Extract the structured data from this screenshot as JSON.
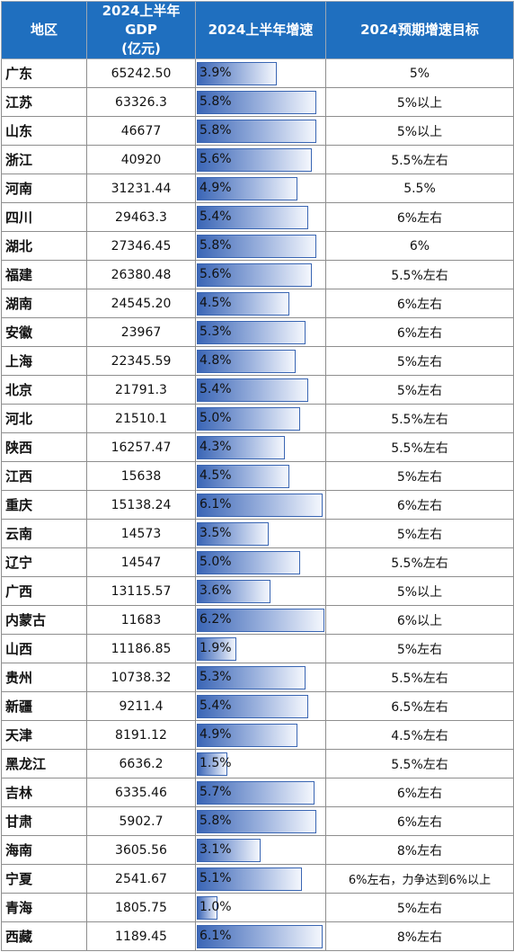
{
  "colors": {
    "header_bg": "#1f6fbf",
    "bar_start": "#3b66b6",
    "bar_end": "#f4f7fd"
  },
  "header": {
    "region": "地区",
    "gdp_line1": "2024上半年GDP",
    "gdp_line2": "(亿元)",
    "growth": "2024上半年增速",
    "target": "2024预期增速目标"
  },
  "rows": [
    {
      "region": "广东",
      "gdp": "65242.50",
      "growth": 3.9,
      "growth_label": "3.9%",
      "target": "5%"
    },
    {
      "region": "江苏",
      "gdp": "63326.3",
      "growth": 5.8,
      "growth_label": "5.8%",
      "target": "5%以上"
    },
    {
      "region": "山东",
      "gdp": "46677",
      "growth": 5.8,
      "growth_label": "5.8%",
      "target": "5%以上"
    },
    {
      "region": "浙江",
      "gdp": "40920",
      "growth": 5.6,
      "growth_label": "5.6%",
      "target": "5.5%左右"
    },
    {
      "region": "河南",
      "gdp": "31231.44",
      "growth": 4.9,
      "growth_label": "4.9%",
      "target": "5.5%"
    },
    {
      "region": "四川",
      "gdp": "29463.3",
      "growth": 5.4,
      "growth_label": "5.4%",
      "target": "6%左右"
    },
    {
      "region": "湖北",
      "gdp": "27346.45",
      "growth": 5.8,
      "growth_label": "5.8%",
      "target": "6%"
    },
    {
      "region": "福建",
      "gdp": "26380.48",
      "growth": 5.6,
      "growth_label": "5.6%",
      "target": "5.5%左右"
    },
    {
      "region": "湖南",
      "gdp": "24545.20",
      "growth": 4.5,
      "growth_label": "4.5%",
      "target": "6%左右"
    },
    {
      "region": "安徽",
      "gdp": "23967",
      "growth": 5.3,
      "growth_label": "5.3%",
      "target": "6%左右"
    },
    {
      "region": "上海",
      "gdp": "22345.59",
      "growth": 4.8,
      "growth_label": "4.8%",
      "target": "5%左右"
    },
    {
      "region": "北京",
      "gdp": "21791.3",
      "growth": 5.4,
      "growth_label": "5.4%",
      "target": "5%左右"
    },
    {
      "region": "河北",
      "gdp": "21510.1",
      "growth": 5.0,
      "growth_label": "5.0%",
      "target": "5.5%左右"
    },
    {
      "region": "陕西",
      "gdp": "16257.47",
      "growth": 4.3,
      "growth_label": "4.3%",
      "target": "5.5%左右"
    },
    {
      "region": "江西",
      "gdp": "15638",
      "growth": 4.5,
      "growth_label": "4.5%",
      "target": "5%左右"
    },
    {
      "region": "重庆",
      "gdp": "15138.24",
      "growth": 6.1,
      "growth_label": "6.1%",
      "target": "6%左右"
    },
    {
      "region": "云南",
      "gdp": "14573",
      "growth": 3.5,
      "growth_label": "3.5%",
      "target": "5%左右"
    },
    {
      "region": "辽宁",
      "gdp": "14547",
      "growth": 5.0,
      "growth_label": "5.0%",
      "target": "5.5%左右"
    },
    {
      "region": "广西",
      "gdp": "13115.57",
      "growth": 3.6,
      "growth_label": "3.6%",
      "target": "5%以上"
    },
    {
      "region": "内蒙古",
      "gdp": "11683",
      "growth": 6.2,
      "growth_label": "6.2%",
      "target": "6%以上"
    },
    {
      "region": "山西",
      "gdp": "11186.85",
      "growth": 1.9,
      "growth_label": "1.9%",
      "target": "5%左右"
    },
    {
      "region": "贵州",
      "gdp": "10738.32",
      "growth": 5.3,
      "growth_label": "5.3%",
      "target": "5.5%左右"
    },
    {
      "region": "新疆",
      "gdp": "9211.4",
      "growth": 5.4,
      "growth_label": "5.4%",
      "target": "6.5%左右"
    },
    {
      "region": "天津",
      "gdp": "8191.12",
      "growth": 4.9,
      "growth_label": "4.9%",
      "target": "4.5%左右"
    },
    {
      "region": "黑龙江",
      "gdp": "6636.2",
      "growth": 1.5,
      "growth_label": "1.5%",
      "target": "5.5%左右"
    },
    {
      "region": "吉林",
      "gdp": "6335.46",
      "growth": 5.7,
      "growth_label": "5.7%",
      "target": "6%左右"
    },
    {
      "region": "甘肃",
      "gdp": "5902.7",
      "growth": 5.8,
      "growth_label": "5.8%",
      "target": "6%左右"
    },
    {
      "region": "海南",
      "gdp": "3605.56",
      "growth": 3.1,
      "growth_label": "3.1%",
      "target": "8%左右"
    },
    {
      "region": "宁夏",
      "gdp": "2541.67",
      "growth": 5.1,
      "growth_label": "5.1%",
      "target": "6%左右，力争达到6%以上"
    },
    {
      "region": "青海",
      "gdp": "1805.75",
      "growth": 1.0,
      "growth_label": "1.0%",
      "target": "5%左右"
    },
    {
      "region": "西藏",
      "gdp": "1189.45",
      "growth": 6.1,
      "growth_label": "6.1%",
      "target": "8%左右"
    }
  ],
  "growth_scale_max": 6.2
}
